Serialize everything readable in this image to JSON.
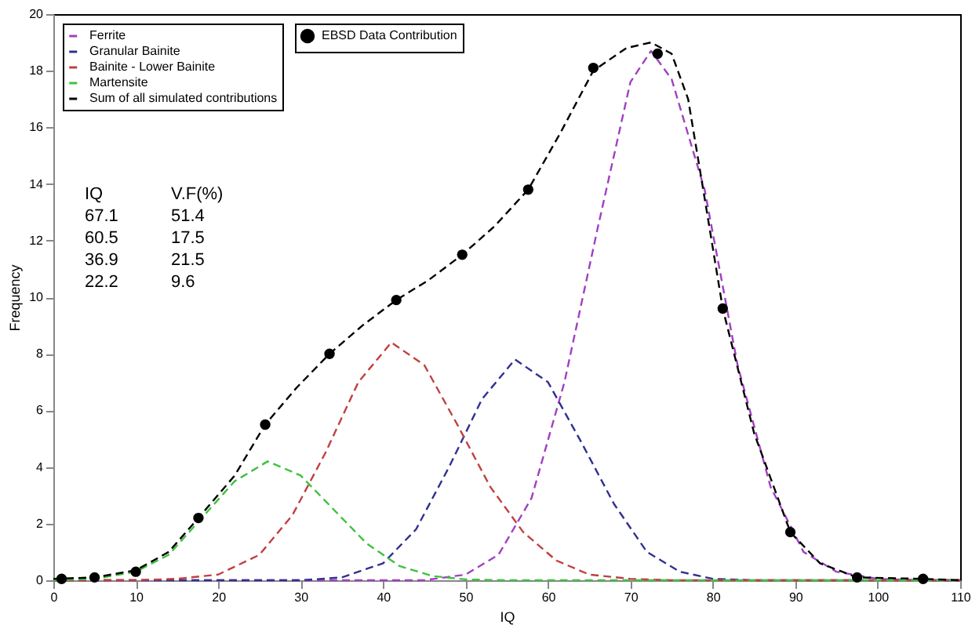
{
  "chart_data": {
    "type": "line",
    "xlabel": "IQ",
    "ylabel": "Frequency",
    "xlim": [
      0,
      110
    ],
    "xticks": [
      0,
      10,
      20,
      30,
      40,
      50,
      60,
      70,
      80,
      90,
      100,
      110
    ],
    "ylim": [
      0,
      20
    ],
    "yticks": [
      0,
      2,
      4,
      6,
      8,
      10,
      12,
      14,
      16,
      18,
      20
    ],
    "grid": false,
    "legend": "top left",
    "line_style": "dashed",
    "annotations": [
      "IQ",
      "V.F(%)",
      "67.1",
      "51.4",
      "60.5",
      "17.5",
      "36.9",
      "21.5",
      "22.2",
      "9.6"
    ],
    "series": [
      {
        "name": "EBSD Data Contribution",
        "type": "scatter",
        "marker": "circle",
        "color": "#000000",
        "x": [
          1,
          5,
          10,
          17.6,
          25.7,
          33.5,
          41.6,
          49.6,
          57.6,
          65.5,
          73.3,
          81.2,
          89.4,
          97.5,
          105.5
        ],
        "values": [
          0.05,
          0.1,
          0.3,
          2.2,
          5.5,
          8.0,
          9.9,
          11.5,
          13.8,
          18.1,
          18.6,
          9.6,
          1.7,
          0.1,
          0.05
        ]
      },
      {
        "name": "Ferrite",
        "color": "#a040c0",
        "x": [
          0,
          45,
          50,
          54,
          58,
          62,
          66,
          70,
          72.5,
          75,
          79,
          83,
          87,
          91,
          95,
          100,
          105,
          110
        ],
        "values": [
          0,
          0,
          0.2,
          0.9,
          2.9,
          7.0,
          12.4,
          17.6,
          18.7,
          17.7,
          13.8,
          7.6,
          3.3,
          1.0,
          0.3,
          0.05,
          0,
          0
        ]
      },
      {
        "name": "Granular Bainite",
        "color": "#303090",
        "x": [
          0,
          30,
          35,
          40,
          44,
          48,
          52,
          56,
          60,
          64,
          68,
          72,
          76,
          80,
          85,
          110
        ],
        "values": [
          0,
          0,
          0.1,
          0.6,
          1.8,
          4.0,
          6.4,
          7.8,
          7.0,
          4.9,
          2.7,
          1.0,
          0.3,
          0.05,
          0,
          0
        ]
      },
      {
        "name": "Bainite - Lower Bainite",
        "color": "#c04040",
        "x": [
          0,
          10,
          15,
          20,
          25,
          29,
          33,
          37,
          41,
          45,
          49,
          53,
          57,
          61,
          65,
          70,
          75,
          110
        ],
        "values": [
          0,
          0,
          0.05,
          0.2,
          0.9,
          2.3,
          4.5,
          7.0,
          8.4,
          7.6,
          5.5,
          3.3,
          1.7,
          0.7,
          0.2,
          0.05,
          0,
          0
        ]
      },
      {
        "name": "Martensite",
        "color": "#40c040",
        "x": [
          0,
          5,
          10,
          14,
          18,
          22,
          26,
          30,
          34,
          38,
          42,
          46,
          50,
          55,
          110
        ],
        "values": [
          0,
          0.05,
          0.3,
          0.9,
          2.2,
          3.5,
          4.2,
          3.7,
          2.5,
          1.3,
          0.5,
          0.15,
          0.03,
          0,
          0
        ]
      },
      {
        "name": "Sum of all simulated contributions",
        "color": "#000000",
        "x": [
          0,
          5,
          10,
          14,
          17.6,
          22,
          25.7,
          29.5,
          33.5,
          37.5,
          41.6,
          45.5,
          49.6,
          53.5,
          57.6,
          61.5,
          65.5,
          69.5,
          72.5,
          75,
          77,
          79,
          81.2,
          85,
          89.4,
          93,
          97.5,
          105.5,
          110
        ],
        "values": [
          0.05,
          0.1,
          0.35,
          1.0,
          2.2,
          3.7,
          5.5,
          6.8,
          8.0,
          9.0,
          9.9,
          10.6,
          11.5,
          12.5,
          13.8,
          15.8,
          18.0,
          18.8,
          19.0,
          18.6,
          17.0,
          13.5,
          9.6,
          5.2,
          1.7,
          0.6,
          0.1,
          0.05,
          0
        ]
      }
    ]
  }
}
